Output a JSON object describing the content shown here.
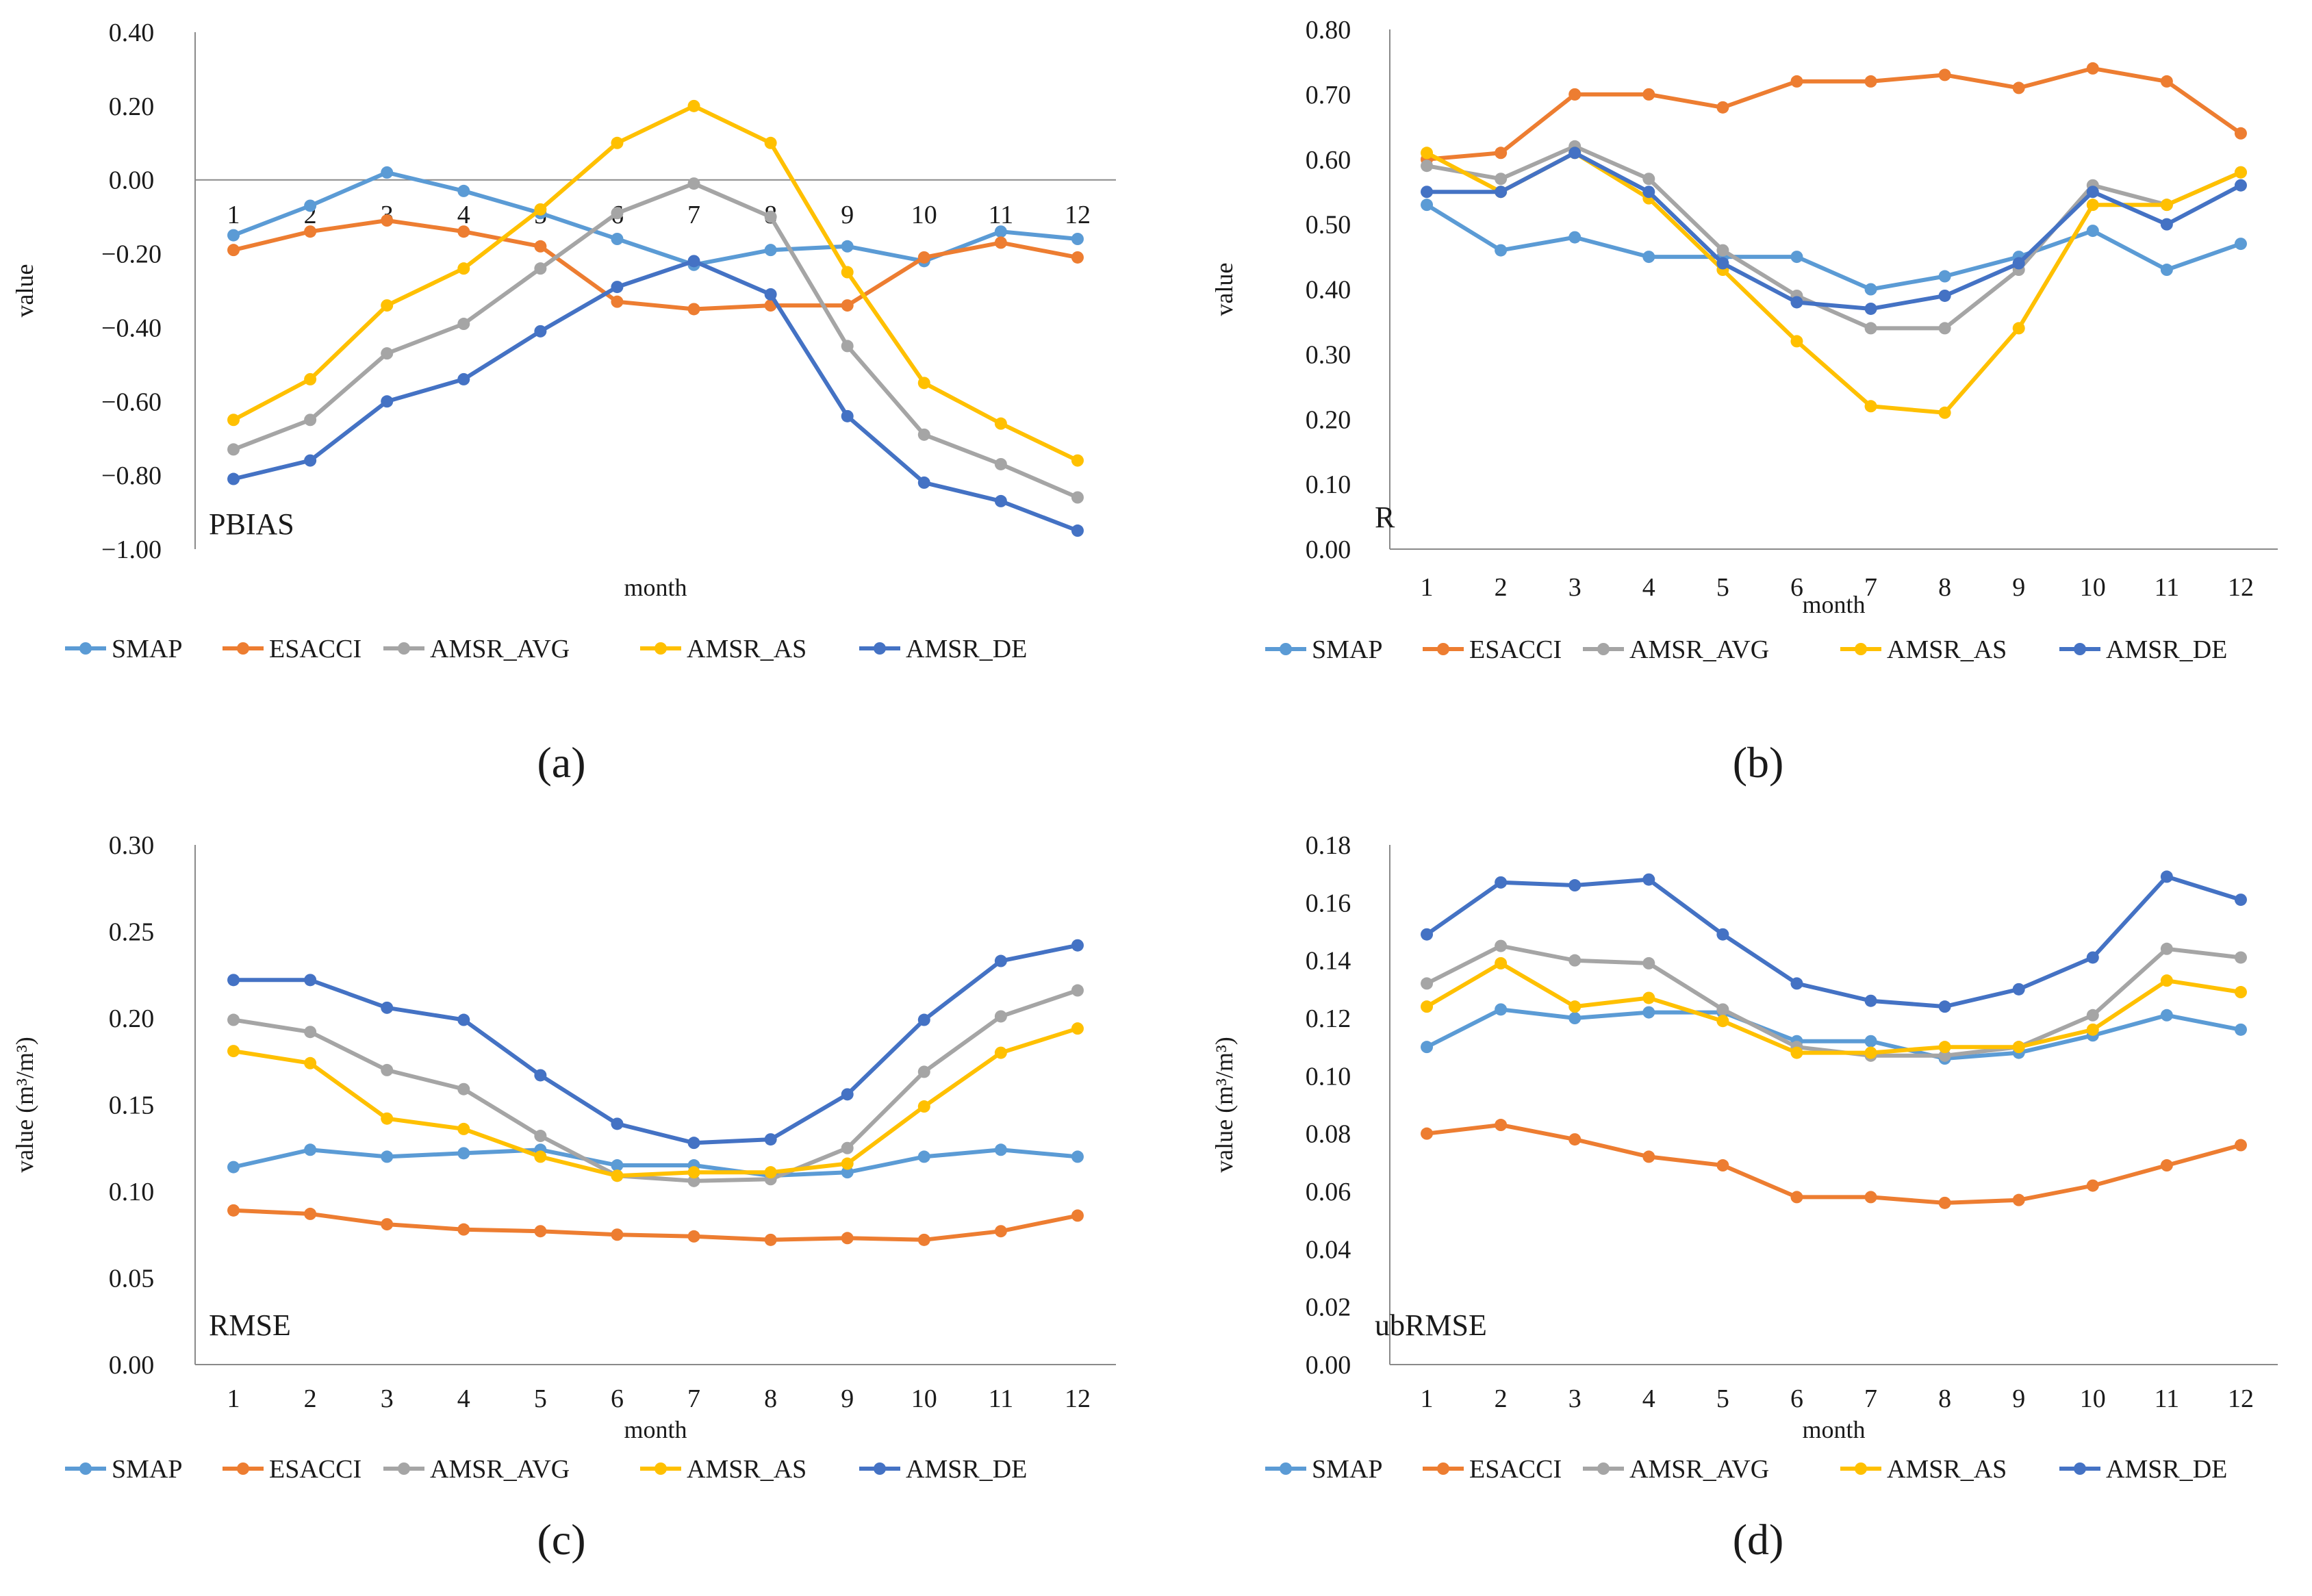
{
  "legend": [
    "SMAP",
    "ESACCI",
    "AMSR_AVG",
    "AMSR_AS",
    "AMSR_DE"
  ],
  "series_colors": {
    "SMAP": "#5B9BD5",
    "ESACCI": "#ED7D31",
    "AMSR_AVG": "#A5A5A5",
    "AMSR_AS": "#FFC000",
    "AMSR_DE": "#4472C4"
  },
  "chart_data": [
    {
      "type": "line",
      "panel": "(a)",
      "title": "PBIAS",
      "xlabel": "month",
      "ylabel": "value",
      "categories": [
        "1",
        "2",
        "3",
        "4",
        "5",
        "6",
        "7",
        "8",
        "9",
        "10",
        "11",
        "12"
      ],
      "y_ticks": [
        "0.40",
        "0.20",
        "0.00",
        "−0.20",
        "−0.40",
        "−0.60",
        "−0.80",
        "−1.00"
      ],
      "ylim": [
        -1.0,
        0.4
      ],
      "x_labels_at_zero": true,
      "series": [
        {
          "name": "SMAP",
          "values": [
            -0.15,
            -0.07,
            0.02,
            -0.03,
            -0.09,
            -0.16,
            -0.23,
            -0.19,
            -0.18,
            -0.22,
            -0.14,
            -0.16
          ]
        },
        {
          "name": "ESACCI",
          "values": [
            -0.19,
            -0.14,
            -0.11,
            -0.14,
            -0.18,
            -0.33,
            -0.35,
            -0.34,
            -0.34,
            -0.21,
            -0.17,
            -0.21
          ]
        },
        {
          "name": "AMSR_AVG",
          "values": [
            -0.73,
            -0.65,
            -0.47,
            -0.39,
            -0.24,
            -0.09,
            -0.01,
            -0.1,
            -0.45,
            -0.69,
            -0.77,
            -0.86
          ]
        },
        {
          "name": "AMSR_AS",
          "values": [
            -0.65,
            -0.54,
            -0.34,
            -0.24,
            -0.08,
            0.1,
            0.2,
            0.1,
            -0.25,
            -0.55,
            -0.66,
            -0.76
          ]
        },
        {
          "name": "AMSR_DE",
          "values": [
            -0.81,
            -0.76,
            -0.6,
            -0.54,
            -0.41,
            -0.29,
            -0.22,
            -0.31,
            -0.64,
            -0.82,
            -0.87,
            -0.95
          ]
        }
      ]
    },
    {
      "type": "line",
      "panel": "(b)",
      "title": "R",
      "xlabel": "month",
      "ylabel": "value",
      "categories": [
        "1",
        "2",
        "3",
        "4",
        "5",
        "6",
        "7",
        "8",
        "9",
        "10",
        "11",
        "12"
      ],
      "y_ticks": [
        "0.80",
        "0.70",
        "0.60",
        "0.50",
        "0.40",
        "0.30",
        "0.20",
        "0.10",
        "0.00"
      ],
      "ylim": [
        0.0,
        0.8
      ],
      "series": [
        {
          "name": "SMAP",
          "values": [
            0.53,
            0.46,
            0.48,
            0.45,
            0.45,
            0.45,
            0.4,
            0.42,
            0.45,
            0.49,
            0.43,
            0.47
          ]
        },
        {
          "name": "ESACCI",
          "values": [
            0.6,
            0.61,
            0.7,
            0.7,
            0.68,
            0.72,
            0.72,
            0.73,
            0.71,
            0.74,
            0.72,
            0.64
          ]
        },
        {
          "name": "AMSR_AVG",
          "values": [
            0.59,
            0.57,
            0.62,
            0.57,
            0.46,
            0.39,
            0.34,
            0.34,
            0.43,
            0.56,
            0.53,
            0.58
          ]
        },
        {
          "name": "AMSR_AS",
          "values": [
            0.61,
            0.55,
            0.61,
            0.54,
            0.43,
            0.32,
            0.22,
            0.21,
            0.34,
            0.53,
            0.53,
            0.58
          ]
        },
        {
          "name": "AMSR_DE",
          "values": [
            0.55,
            0.55,
            0.61,
            0.55,
            0.44,
            0.38,
            0.37,
            0.39,
            0.44,
            0.55,
            0.5,
            0.56
          ]
        }
      ]
    },
    {
      "type": "line",
      "panel": "(c)",
      "title": "RMSE",
      "xlabel": "month",
      "ylabel": "value (m³/m³)",
      "categories": [
        "1",
        "2",
        "3",
        "4",
        "5",
        "6",
        "7",
        "8",
        "9",
        "10",
        "11",
        "12"
      ],
      "y_ticks": [
        "0.30",
        "0.25",
        "0.20",
        "0.15",
        "0.10",
        "0.05",
        "0.00"
      ],
      "ylim": [
        0.0,
        0.3
      ],
      "series": [
        {
          "name": "SMAP",
          "values": [
            0.114,
            0.124,
            0.12,
            0.122,
            0.124,
            0.115,
            0.115,
            0.109,
            0.111,
            0.12,
            0.124,
            0.12
          ]
        },
        {
          "name": "ESACCI",
          "values": [
            0.089,
            0.087,
            0.081,
            0.078,
            0.077,
            0.075,
            0.074,
            0.072,
            0.073,
            0.072,
            0.077,
            0.086
          ]
        },
        {
          "name": "AMSR_AVG",
          "values": [
            0.199,
            0.192,
            0.17,
            0.159,
            0.132,
            0.109,
            0.106,
            0.107,
            0.125,
            0.169,
            0.201,
            0.216
          ]
        },
        {
          "name": "AMSR_AS",
          "values": [
            0.181,
            0.174,
            0.142,
            0.136,
            0.12,
            0.109,
            0.111,
            0.111,
            0.116,
            0.149,
            0.18,
            0.194
          ]
        },
        {
          "name": "AMSR_DE",
          "values": [
            0.222,
            0.222,
            0.206,
            0.199,
            0.167,
            0.139,
            0.128,
            0.13,
            0.156,
            0.199,
            0.233,
            0.242
          ]
        }
      ]
    },
    {
      "type": "line",
      "panel": "(d)",
      "title": "ubRMSE",
      "xlabel": "month",
      "ylabel": "value (m³/m³)",
      "categories": [
        "1",
        "2",
        "3",
        "4",
        "5",
        "6",
        "7",
        "8",
        "9",
        "10",
        "11",
        "12"
      ],
      "y_ticks": [
        "0.18",
        "0.16",
        "0.14",
        "0.12",
        "0.10",
        "0.08",
        "0.06",
        "0.04",
        "0.02",
        "0.00"
      ],
      "ylim": [
        0.0,
        0.18
      ],
      "series": [
        {
          "name": "SMAP",
          "values": [
            0.11,
            0.123,
            0.12,
            0.122,
            0.122,
            0.112,
            0.112,
            0.106,
            0.108,
            0.114,
            0.121,
            0.116
          ]
        },
        {
          "name": "ESACCI",
          "values": [
            0.08,
            0.083,
            0.078,
            0.072,
            0.069,
            0.058,
            0.058,
            0.056,
            0.057,
            0.062,
            0.069,
            0.076
          ]
        },
        {
          "name": "AMSR_AVG",
          "values": [
            0.132,
            0.145,
            0.14,
            0.139,
            0.123,
            0.11,
            0.107,
            0.107,
            0.11,
            0.121,
            0.144,
            0.141
          ]
        },
        {
          "name": "AMSR_AS",
          "values": [
            0.124,
            0.139,
            0.124,
            0.127,
            0.119,
            0.108,
            0.108,
            0.11,
            0.11,
            0.116,
            0.133,
            0.129
          ]
        },
        {
          "name": "AMSR_DE",
          "values": [
            0.149,
            0.167,
            0.166,
            0.168,
            0.149,
            0.132,
            0.126,
            0.124,
            0.13,
            0.141,
            0.169,
            0.161
          ]
        }
      ]
    }
  ]
}
